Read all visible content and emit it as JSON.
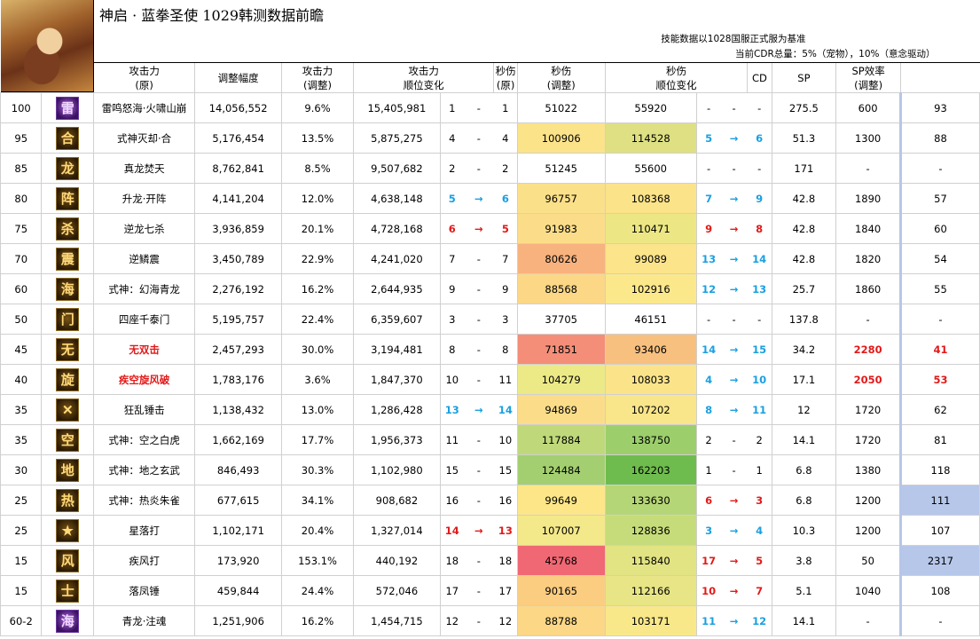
{
  "title": "神启 · 蓝拳圣使  1029韩测数据前瞻",
  "notes": {
    "line1": "技能数据以1028国服正式服为基准",
    "line2": "当前CDR总量：5%（宠物），10%（意念驱动）"
  },
  "headers": {
    "atk_orig": [
      "攻击力",
      "(原)"
    ],
    "adjust": "调整幅度",
    "atk_adj": [
      "攻击力",
      "(调整)"
    ],
    "atk_rank": [
      "攻击力",
      "顺位变化"
    ],
    "dps_orig": [
      "秒伤",
      "(原)"
    ],
    "dps_adj": [
      "秒伤",
      "(调整)"
    ],
    "dps_rank": [
      "秒伤",
      "顺位变化"
    ],
    "cd": "CD",
    "sp": "SP",
    "sp_eff": [
      "SP效率",
      "(调整)"
    ]
  },
  "rows": [
    {
      "lv": "100",
      "icon": "雷",
      "icon_name": "thunder-mountain-icon",
      "skill": "雷鸣怒海·火啸山崩",
      "atk": "14,056,552",
      "adj": "9.6%",
      "atk2": "15,405,981",
      "r1": "1",
      "a1": "-",
      "r1b": "1",
      "dps": "51022",
      "dps2": "55920",
      "r2": "-",
      "a2": "-",
      "r2b": "-",
      "cd": "275.5",
      "sp": "600",
      "eff": "93"
    },
    {
      "lv": "95",
      "icon": "合",
      "icon_name": "shikigami-destroy-icon",
      "skill": "式神灭却·合",
      "atk": "5,176,454",
      "adj": "13.5%",
      "atk2": "5,875,275",
      "r1": "4",
      "a1": "-",
      "r1b": "4",
      "dps": "100906",
      "dps2": "114528",
      "r2": "5",
      "a2": "→",
      "r2b": "6",
      "cd": "51.3",
      "sp": "1300",
      "eff": "88"
    },
    {
      "lv": "85",
      "icon": "龙",
      "icon_name": "true-dragon-icon",
      "skill": "真龙焚天",
      "atk": "8,762,841",
      "adj": "8.5%",
      "atk2": "9,507,682",
      "r1": "2",
      "a1": "-",
      "r1b": "2",
      "dps": "51245",
      "dps2": "55600",
      "r2": "-",
      "a2": "-",
      "r2b": "-",
      "cd": "171",
      "sp": "-",
      "eff": "-"
    },
    {
      "lv": "80",
      "icon": "阵",
      "icon_name": "rising-dragon-icon",
      "skill": "升龙·开阵",
      "atk": "4,141,204",
      "adj": "12.0%",
      "atk2": "4,638,148",
      "r1": "5",
      "a1": "→",
      "r1b": "6",
      "dps": "96757",
      "dps2": "108368",
      "r2": "7",
      "a2": "→",
      "r2b": "9",
      "cd": "42.8",
      "sp": "1890",
      "eff": "57"
    },
    {
      "lv": "75",
      "icon": "杀",
      "icon_name": "seven-kills-icon",
      "skill": "逆龙七杀",
      "atk": "3,936,859",
      "adj": "20.1%",
      "atk2": "4,728,168",
      "r1": "6",
      "a1": "→",
      "r1b": "5",
      "dps": "91983",
      "dps2": "110471",
      "r2": "9",
      "a2": "→",
      "r2b": "8",
      "cd": "42.8",
      "sp": "1840",
      "eff": "60"
    },
    {
      "lv": "70",
      "icon": "震",
      "icon_name": "scale-quake-icon",
      "skill": "逆鳞震",
      "atk": "3,450,789",
      "adj": "22.9%",
      "atk2": "4,241,020",
      "r1": "7",
      "a1": "-",
      "r1b": "7",
      "dps": "80626",
      "dps2": "99089",
      "r2": "13",
      "a2": "→",
      "r2b": "14",
      "cd": "42.8",
      "sp": "1820",
      "eff": "54"
    },
    {
      "lv": "60",
      "icon": "海",
      "icon_name": "illusion-sea-icon",
      "skill": "式神：幻海青龙",
      "atk": "2,276,192",
      "adj": "16.2%",
      "atk2": "2,644,935",
      "r1": "9",
      "a1": "-",
      "r1b": "9",
      "dps": "88568",
      "dps2": "102916",
      "r2": "12",
      "a2": "→",
      "r2b": "13",
      "cd": "25.7",
      "sp": "1860",
      "eff": "55"
    },
    {
      "lv": "50",
      "icon": "门",
      "icon_name": "four-gates-icon",
      "skill": "四座千泰门",
      "atk": "5,195,757",
      "adj": "22.4%",
      "atk2": "6,359,607",
      "r1": "3",
      "a1": "-",
      "r1b": "3",
      "dps": "37705",
      "dps2": "46151",
      "r2": "-",
      "a2": "-",
      "r2b": "-",
      "cd": "137.8",
      "sp": "-",
      "eff": "-"
    },
    {
      "lv": "45",
      "icon": "无",
      "icon_name": "peerless-strike-icon",
      "skill": "无双击",
      "atk": "2,457,293",
      "adj": "30.0%",
      "atk2": "3,194,481",
      "r1": "8",
      "a1": "-",
      "r1b": "8",
      "dps": "71851",
      "dps2": "93406",
      "r2": "14",
      "a2": "→",
      "r2b": "15",
      "cd": "34.2",
      "sp": "2280",
      "eff": "41"
    },
    {
      "lv": "40",
      "icon": "旋",
      "icon_name": "whirlwind-icon",
      "skill": "疾空旋风破",
      "atk": "1,783,176",
      "adj": "3.6%",
      "atk2": "1,847,370",
      "r1": "10",
      "a1": "-",
      "r1b": "11",
      "dps": "104279",
      "dps2": "108033",
      "r2": "4",
      "a2": "→",
      "r2b": "10",
      "cd": "17.1",
      "sp": "2050",
      "eff": "53"
    },
    {
      "lv": "35",
      "icon": "✕",
      "icon_name": "frenzy-hammer-icon",
      "skill": "狂乱锤击",
      "atk": "1,138,432",
      "adj": "13.0%",
      "atk2": "1,286,428",
      "r1": "13",
      "a1": "→",
      "r1b": "14",
      "dps": "94869",
      "dps2": "107202",
      "r2": "8",
      "a2": "→",
      "r2b": "11",
      "cd": "12",
      "sp": "1720",
      "eff": "62"
    },
    {
      "lv": "35",
      "icon": "空",
      "icon_name": "sky-tiger-icon",
      "skill": "式神：空之白虎",
      "atk": "1,662,169",
      "adj": "17.7%",
      "atk2": "1,956,373",
      "r1": "11",
      "a1": "-",
      "r1b": "10",
      "dps": "117884",
      "dps2": "138750",
      "r2": "2",
      "a2": "-",
      "r2b": "2",
      "cd": "14.1",
      "sp": "1720",
      "eff": "81"
    },
    {
      "lv": "30",
      "icon": "地",
      "icon_name": "earth-tortoise-icon",
      "skill": "式神：地之玄武",
      "atk": "846,493",
      "adj": "30.3%",
      "atk2": "1,102,980",
      "r1": "15",
      "a1": "-",
      "r1b": "15",
      "dps": "124484",
      "dps2": "162203",
      "r2": "1",
      "a2": "-",
      "r2b": "1",
      "cd": "6.8",
      "sp": "1380",
      "eff": "118"
    },
    {
      "lv": "25",
      "icon": "热",
      "icon_name": "flame-bird-icon",
      "skill": "式神：热炎朱雀",
      "atk": "677,615",
      "adj": "34.1%",
      "atk2": "908,682",
      "r1": "16",
      "a1": "-",
      "r1b": "16",
      "dps": "99649",
      "dps2": "133630",
      "r2": "6",
      "a2": "→",
      "r2b": "3",
      "cd": "6.8",
      "sp": "1200",
      "eff": "111"
    },
    {
      "lv": "25",
      "icon": "★",
      "icon_name": "falling-star-icon",
      "skill": "星落打",
      "atk": "1,102,171",
      "adj": "20.4%",
      "atk2": "1,327,014",
      "r1": "14",
      "a1": "→",
      "r1b": "13",
      "dps": "107007",
      "dps2": "128836",
      "r2": "3",
      "a2": "→",
      "r2b": "4",
      "cd": "10.3",
      "sp": "1200",
      "eff": "107"
    },
    {
      "lv": "15",
      "icon": "风",
      "icon_name": "gale-strike-icon",
      "skill": "疾风打",
      "atk": "173,920",
      "adj": "153.1%",
      "atk2": "440,192",
      "r1": "18",
      "a1": "-",
      "r1b": "18",
      "dps": "45768",
      "dps2": "115840",
      "r2": "17",
      "a2": "→",
      "r2b": "5",
      "cd": "3.8",
      "sp": "50",
      "eff": "2317"
    },
    {
      "lv": "15",
      "icon": "士",
      "icon_name": "phoenix-hammer-icon",
      "skill": "落凤锤",
      "atk": "459,844",
      "adj": "24.4%",
      "atk2": "572,046",
      "r1": "17",
      "a1": "-",
      "r1b": "17",
      "dps": "90165",
      "dps2": "112166",
      "r2": "10",
      "a2": "→",
      "r2b": "7",
      "cd": "5.1",
      "sp": "1040",
      "eff": "108"
    },
    {
      "lv": "60-2",
      "icon": "海",
      "icon_name": "soul-injection-icon",
      "skill": "青龙·注魂",
      "atk": "1,251,906",
      "adj": "16.2%",
      "atk2": "1,454,715",
      "r1": "12",
      "a1": "-",
      "r1b": "12",
      "dps": "88788",
      "dps2": "103171",
      "r2": "11",
      "a2": "→",
      "r2b": "12",
      "cd": "14.1",
      "sp": "-",
      "eff": "-"
    }
  ],
  "colors": {
    "dps_orig_bg": [
      "#ffffff",
      "#fbe38a",
      "#ffffff",
      "#fbe08a",
      "#fbdd89",
      "#f8b27e",
      "#fbd786",
      "#ffffff",
      "#f48e78",
      "#ecea86",
      "#fbdd89",
      "#bfd97a",
      "#a3cf70",
      "#fce688",
      "#f3e88a",
      "#f06874",
      "#fbcd80",
      "#fbd786"
    ],
    "dps_adj_bg": [
      "#ffffff",
      "#dee083",
      "#ffffff",
      "#fbe38a",
      "#ece784",
      "#fbe48a",
      "#fbe88b",
      "#ffffff",
      "#f8c07f",
      "#fbe38a",
      "#f9e58a",
      "#9ccf6c",
      "#6fbc4e",
      "#b5d676",
      "#c6dc7a",
      "#e2e383",
      "#e7e585",
      "#f8e88a"
    ],
    "sp_eff_bg": [
      "#ffffff",
      "#ffffff",
      "#ffffff",
      "#ffffff",
      "#ffffff",
      "#ffffff",
      "#ffffff",
      "#ffffff",
      "#ffffff",
      "#ffffff",
      "#ffffff",
      "#ffffff",
      "#ffffff",
      "#b6c7ea",
      "#ffffff",
      "#b6c7ea",
      "#ffffff",
      "#ffffff"
    ],
    "red_skill_rows": [
      8,
      9
    ],
    "red_sp_rows": [
      8,
      9
    ],
    "purple_icon_rows": [
      0,
      17
    ]
  }
}
